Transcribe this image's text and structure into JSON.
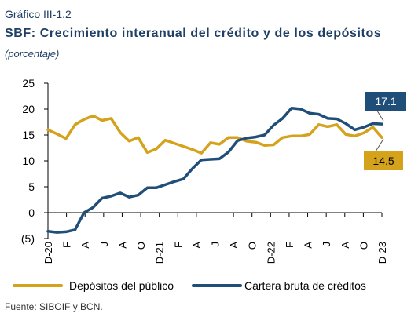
{
  "header": {
    "pre_title": "Gráfico III-1.2",
    "title": "SBF: Crecimiento interanual del crédito y de los depósitos",
    "subtitle": "(porcentaje)"
  },
  "footer": {
    "source": "Fuente: SIBOIF y BCN."
  },
  "colors": {
    "depositos": "#D4A21B",
    "credito": "#1F4E79",
    "text": "#1f3f66"
  },
  "chart_data": {
    "type": "line",
    "ylim": [
      -5,
      25
    ],
    "yticks": [
      -5,
      0,
      5,
      10,
      15,
      20,
      25
    ],
    "ytick_labels": [
      "(5)",
      "0",
      "5",
      "10",
      "15",
      "20",
      "25"
    ],
    "xtick_labels": [
      "D-20",
      "F",
      "A",
      "J",
      "A",
      "O",
      "D-21",
      "F",
      "A",
      "J",
      "A",
      "O",
      "D-22",
      "F",
      "A",
      "J",
      "A",
      "O",
      "D-23"
    ],
    "legend_position": "bottom",
    "grid": false,
    "series": [
      {
        "name": "Depósitos del público",
        "color": "#D4A21B",
        "values": [
          16.0,
          15.2,
          14.3,
          17.0,
          18.0,
          18.7,
          17.8,
          18.2,
          15.5,
          13.8,
          14.5,
          11.6,
          12.3,
          14.0,
          13.4,
          12.8,
          12.2,
          11.5,
          13.5,
          13.2,
          14.5,
          14.5,
          13.8,
          13.6,
          13.0,
          13.1,
          14.5,
          14.8,
          14.8,
          15.1,
          17.0,
          16.6,
          17.0,
          15.1,
          14.8,
          15.4,
          16.5,
          14.5
        ],
        "end_label": "14.5"
      },
      {
        "name": "Cartera bruta de créditos",
        "color": "#1F4E79",
        "values": [
          -3.6,
          -3.8,
          -3.7,
          -3.3,
          0.0,
          1.0,
          2.8,
          3.2,
          3.8,
          3.0,
          3.4,
          4.8,
          4.8,
          5.4,
          6.0,
          6.5,
          8.5,
          10.2,
          10.3,
          10.4,
          11.7,
          13.9,
          14.4,
          14.6,
          15.0,
          16.9,
          18.2,
          20.2,
          20.0,
          19.2,
          19.0,
          18.2,
          18.1,
          17.2,
          16.0,
          16.5,
          17.2,
          17.1
        ],
        "end_label": "17.1"
      }
    ]
  }
}
